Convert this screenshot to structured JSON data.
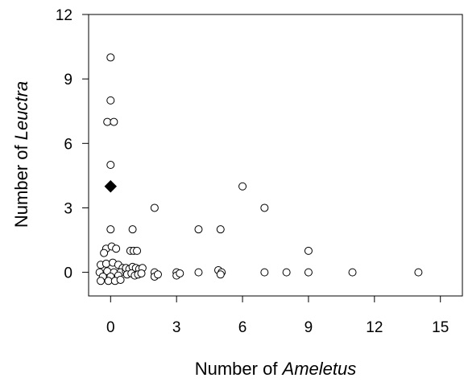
{
  "chart_data": {
    "type": "scatter",
    "title": "",
    "xlabel_prefix": "Number of ",
    "xlabel_italic": "Ameletus",
    "ylabel_prefix": "Number of ",
    "ylabel_italic": "Leuctra",
    "xlim": [
      -1,
      16
    ],
    "ylim": [
      -1.1,
      12
    ],
    "xticks": [
      0,
      3,
      6,
      9,
      12,
      15
    ],
    "yticks": [
      0,
      3,
      6,
      9,
      12
    ],
    "grid": false,
    "legend": "none",
    "series": [
      {
        "marker": "open-circle",
        "color": "#000000",
        "points": [
          [
            0,
            10
          ],
          [
            0,
            8
          ],
          [
            -0.15,
            7
          ],
          [
            0.15,
            7
          ],
          [
            0,
            5
          ],
          [
            0,
            2
          ],
          [
            -0.2,
            1.1
          ],
          [
            0.05,
            1.2
          ],
          [
            0.25,
            1.1
          ],
          [
            -0.3,
            0.9
          ],
          [
            -0.45,
            0.35
          ],
          [
            -0.2,
            0.4
          ],
          [
            0.1,
            0.45
          ],
          [
            0.35,
            0.35
          ],
          [
            0.55,
            0.2
          ],
          [
            -0.5,
            0
          ],
          [
            -0.15,
            0.05
          ],
          [
            0.15,
            0
          ],
          [
            0.45,
            0
          ],
          [
            0.7,
            0.05
          ],
          [
            -0.35,
            -0.2
          ],
          [
            0,
            -0.2
          ],
          [
            0.35,
            -0.15
          ],
          [
            -0.45,
            -0.4
          ],
          [
            -0.1,
            -0.4
          ],
          [
            0.2,
            -0.4
          ],
          [
            0.45,
            -0.35
          ],
          [
            0.9,
            1
          ],
          [
            1.05,
            1
          ],
          [
            1.2,
            1
          ],
          [
            1,
            2
          ],
          [
            0.7,
            0.2
          ],
          [
            0.85,
            0.15
          ],
          [
            1.0,
            0.25
          ],
          [
            1.15,
            0.2
          ],
          [
            1.3,
            0.15
          ],
          [
            1.45,
            0.2
          ],
          [
            0.75,
            -0.1
          ],
          [
            0.95,
            -0.05
          ],
          [
            1.1,
            -0.15
          ],
          [
            1.25,
            -0.1
          ],
          [
            1.4,
            -0.05
          ],
          [
            2,
            3
          ],
          [
            2,
            0
          ],
          [
            2,
            -0.2
          ],
          [
            2.15,
            -0.1
          ],
          [
            3,
            0
          ],
          [
            3,
            -0.15
          ],
          [
            3.15,
            -0.05
          ],
          [
            4,
            2
          ],
          [
            4,
            0
          ],
          [
            5,
            2
          ],
          [
            4.9,
            0.1
          ],
          [
            5.05,
            0
          ],
          [
            5,
            -0.1
          ],
          [
            6,
            4
          ],
          [
            7,
            3
          ],
          [
            7,
            0
          ],
          [
            8,
            0
          ],
          [
            9,
            1
          ],
          [
            9,
            0
          ],
          [
            11,
            0
          ],
          [
            14,
            0
          ]
        ]
      },
      {
        "marker": "filled-diamond",
        "color": "#000000",
        "points": [
          [
            0,
            4
          ]
        ]
      }
    ]
  }
}
